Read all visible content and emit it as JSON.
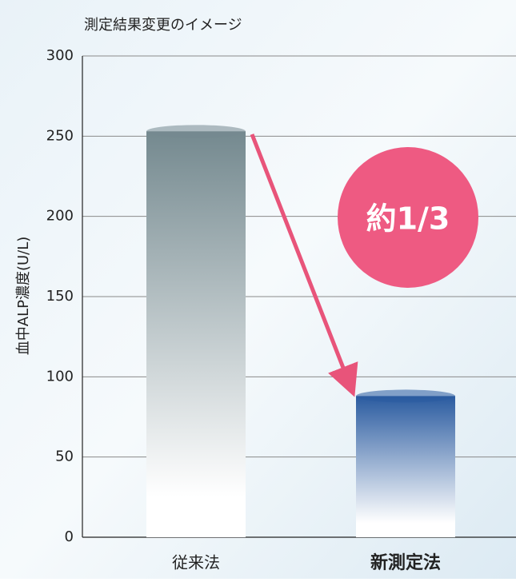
{
  "chart_data": {
    "type": "bar",
    "title": "測定結果変更のイメージ",
    "y_label": "血中ALP濃度(U/L)",
    "categories": [
      "従来法",
      "新測定法"
    ],
    "values": [
      253,
      88
    ],
    "colors": [
      "#74898f",
      "#2a5ba0"
    ],
    "ylim": [
      0,
      300
    ],
    "yticks": [
      0,
      50,
      100,
      150,
      200,
      250,
      300
    ],
    "grid": true,
    "annotation": "約1/3"
  }
}
